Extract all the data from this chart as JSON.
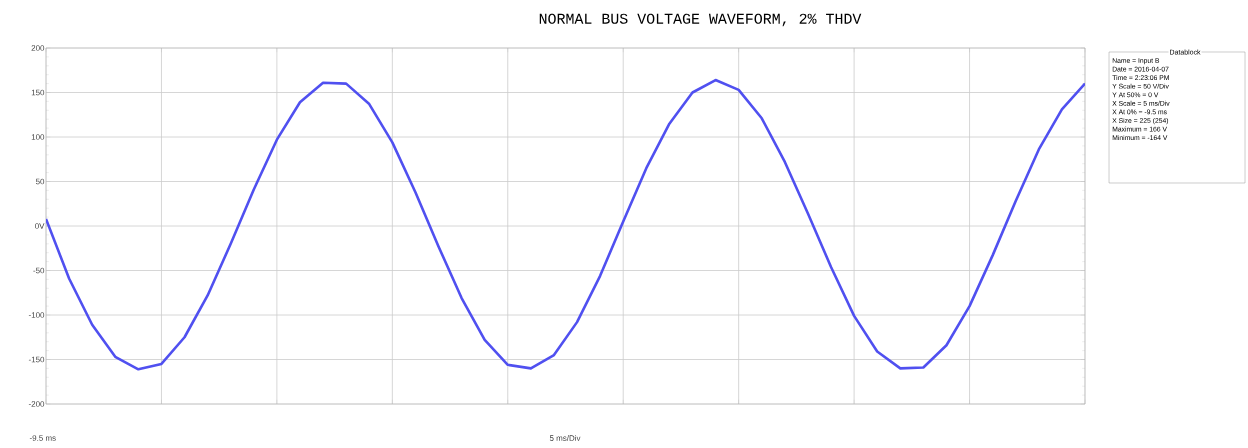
{
  "chart_data": {
    "type": "line",
    "title": "NORMAL BUS VOLTAGE WAVEFORM,  2% THDV",
    "annotations": [
      "5 ms/Div",
      "-9.5 ms",
      "Datablock",
      "Name = Input B",
      "Date = 2016-04-07",
      "Time = 2:23:06 PM",
      "Y Scale = 50 V/Div",
      "Y At 50% = 0 V",
      "X Scale = 5 ms/Div",
      "X At 0% = -9.5 ms",
      "X Size = 225 (254)",
      "Maximum = 166 V",
      "Minimum = -164 V"
    ],
    "categories": [
      null,
      null,
      null,
      null,
      null,
      null,
      null,
      null,
      null,
      null,
      null,
      null,
      null,
      null,
      null,
      null,
      null,
      null,
      null,
      null,
      null,
      null,
      null,
      null,
      null,
      null,
      null,
      null,
      null,
      null,
      null,
      null,
      null,
      null,
      null,
      null,
      null,
      null,
      null,
      null,
      null,
      null,
      null,
      null,
      null,
      null
    ],
    "ylim": [
      -200,
      200
    ],
    "yticks": [
      {
        "value": -200,
        "label": "-200"
      },
      {
        "value": -150,
        "label": "-150"
      },
      {
        "value": -100,
        "label": "-100"
      },
      {
        "value": -50,
        "label": "-50"
      },
      {
        "value": 0,
        "label": "0V"
      },
      {
        "value": 50,
        "label": "50"
      },
      {
        "value": 100,
        "label": "100"
      },
      {
        "value": 150,
        "label": "150"
      },
      {
        "value": 200,
        "label": "200"
      }
    ],
    "grid": true,
    "series": [
      {
        "color": "#5050f0",
        "values": [
          8,
          -59,
          -111,
          -147,
          -161,
          -155,
          -125,
          -78,
          -20,
          41,
          97,
          139,
          161,
          160,
          137,
          94,
          38,
          -23,
          -81,
          -128,
          -156,
          -160,
          -145,
          -108,
          -56,
          5,
          65,
          115,
          150,
          164,
          153,
          121,
          72,
          14,
          -46,
          -101,
          -141,
          -160,
          -159,
          -134,
          -90,
          -33,
          28,
          86,
          131,
          160
        ]
      }
    ]
  }
}
